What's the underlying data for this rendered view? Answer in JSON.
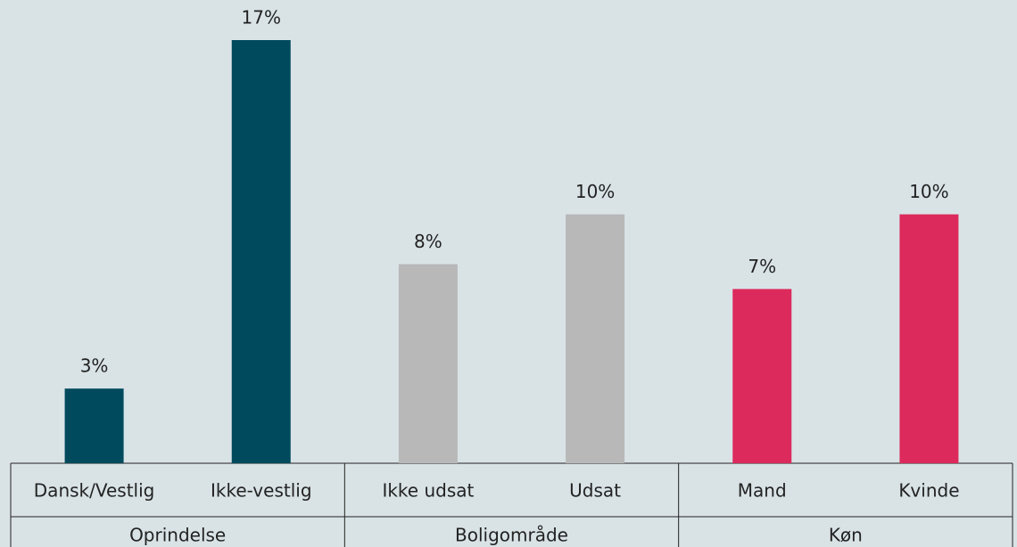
{
  "chart_data": {
    "type": "bar",
    "groups": [
      {
        "name": "Oprindelse",
        "color": "#004a5e",
        "categories": [
          "Dansk/Vestlig",
          "Ikke-vestlig"
        ],
        "values": [
          3,
          17
        ],
        "value_labels": [
          "3%",
          "17%"
        ]
      },
      {
        "name": "Boligområde",
        "color": "#b8b8b8",
        "categories": [
          "Ikke udsat",
          "Udsat"
        ],
        "values": [
          8,
          10
        ],
        "value_labels": [
          "8%",
          "10%"
        ]
      },
      {
        "name": "Køn",
        "color": "#dc2a5c",
        "categories": [
          "Mand",
          "Kvinde"
        ],
        "values": [
          7,
          10
        ],
        "value_labels": [
          "7%",
          "10%"
        ]
      }
    ]
  }
}
